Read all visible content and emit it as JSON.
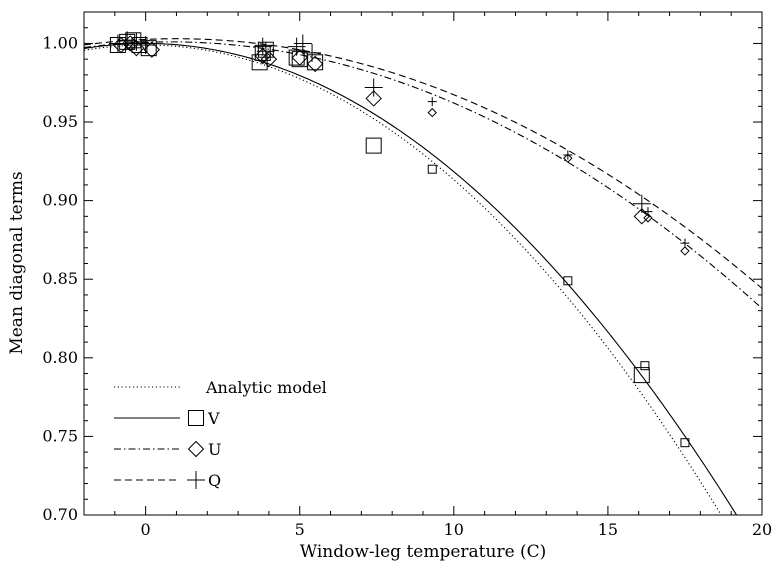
{
  "chart_data": {
    "type": "scatter",
    "title": "",
    "xlabel": "Window-leg temperature (C)",
    "ylabel": "Mean diagonal terms",
    "xlim": [
      -2,
      20
    ],
    "ylim": [
      0.7,
      1.02
    ],
    "x_ticks": [
      0,
      5,
      10,
      15,
      20
    ],
    "x_tick_labels": [
      "0",
      "5",
      "10",
      "15",
      "20"
    ],
    "y_ticks": [
      0.7,
      0.75,
      0.8,
      0.85,
      0.9,
      0.95,
      1.0
    ],
    "y_tick_labels": [
      "0.70",
      "0.75",
      "0.80",
      "0.85",
      "0.90",
      "0.95",
      "1.00"
    ],
    "grid": false,
    "legend": {
      "placement": "bottom-left",
      "entries": [
        {
          "label": "Analytic model",
          "line": "dotted",
          "marker": "none"
        },
        {
          "label": "V",
          "line": "solid",
          "marker": "square"
        },
        {
          "label": "U",
          "line": "dashdot",
          "marker": "diamond"
        },
        {
          "label": "Q",
          "line": "dashed",
          "marker": "plus"
        }
      ]
    },
    "curves": [
      {
        "legend_label": "Analytic model",
        "style": "dotted",
        "model": "quadratic",
        "x0": 0.0,
        "y0": 0.999,
        "k": 0.000857
      },
      {
        "legend_label": "V",
        "style": "solid",
        "model": "quadratic",
        "x0": 0.0,
        "y0": 1.0,
        "k": 0.000816
      },
      {
        "legend_label": "U",
        "style": "dashdot",
        "model": "quadratic",
        "x0": 0.8,
        "y0": 1.001,
        "k": 0.00046
      },
      {
        "legend_label": "Q",
        "style": "dashed",
        "model": "quadratic",
        "x0": 1.0,
        "y0": 1.003,
        "k": 0.00044
      }
    ],
    "series": [
      {
        "legend_label": "V",
        "marker": "square",
        "points": [
          {
            "x": -0.9,
            "y": 0.999,
            "s": "large"
          },
          {
            "x": -0.6,
            "y": 1.001,
            "s": "large"
          },
          {
            "x": -0.4,
            "y": 1.002,
            "s": "large"
          },
          {
            "x": -0.2,
            "y": 0.999,
            "s": "large"
          },
          {
            "x": 0.1,
            "y": 0.997,
            "s": "large"
          },
          {
            "x": 3.7,
            "y": 0.988,
            "s": "large"
          },
          {
            "x": 3.8,
            "y": 0.994,
            "s": "large"
          },
          {
            "x": 3.9,
            "y": 0.996,
            "s": "large"
          },
          {
            "x": 4.9,
            "y": 0.991,
            "s": "large"
          },
          {
            "x": 5.0,
            "y": 0.99,
            "s": "large"
          },
          {
            "x": 5.5,
            "y": 0.988,
            "s": "large"
          },
          {
            "x": 7.4,
            "y": 0.935,
            "s": "large"
          },
          {
            "x": 9.3,
            "y": 0.92,
            "s": "small"
          },
          {
            "x": 13.7,
            "y": 0.849,
            "s": "small"
          },
          {
            "x": 16.2,
            "y": 0.795,
            "s": "small"
          },
          {
            "x": 16.1,
            "y": 0.789,
            "s": "large"
          },
          {
            "x": 17.5,
            "y": 0.746,
            "s": "small"
          }
        ]
      },
      {
        "legend_label": "U",
        "marker": "diamond",
        "points": [
          {
            "x": -0.8,
            "y": 0.999,
            "s": "large"
          },
          {
            "x": -0.5,
            "y": 1.0,
            "s": "large"
          },
          {
            "x": -0.3,
            "y": 0.997,
            "s": "large"
          },
          {
            "x": 0.2,
            "y": 0.996,
            "s": "large"
          },
          {
            "x": 3.8,
            "y": 0.992,
            "s": "large"
          },
          {
            "x": 4.0,
            "y": 0.99,
            "s": "large"
          },
          {
            "x": 5.0,
            "y": 0.991,
            "s": "large"
          },
          {
            "x": 5.5,
            "y": 0.987,
            "s": "large"
          },
          {
            "x": 7.4,
            "y": 0.965,
            "s": "large"
          },
          {
            "x": 9.3,
            "y": 0.956,
            "s": "small"
          },
          {
            "x": 13.7,
            "y": 0.927,
            "s": "small"
          },
          {
            "x": 16.1,
            "y": 0.89,
            "s": "large"
          },
          {
            "x": 16.3,
            "y": 0.889,
            "s": "small"
          },
          {
            "x": 17.5,
            "y": 0.868,
            "s": "small"
          }
        ]
      },
      {
        "legend_label": "Q",
        "marker": "plus",
        "points": [
          {
            "x": -0.9,
            "y": 1.0,
            "s": "large"
          },
          {
            "x": -0.6,
            "y": 1.002,
            "s": "large"
          },
          {
            "x": -0.3,
            "y": 1.001,
            "s": "large"
          },
          {
            "x": 0.0,
            "y": 0.999,
            "s": "large"
          },
          {
            "x": 3.8,
            "y": 0.998,
            "s": "large"
          },
          {
            "x": 3.9,
            "y": 0.995,
            "s": "large"
          },
          {
            "x": 4.9,
            "y": 0.998,
            "s": "large"
          },
          {
            "x": 5.1,
            "y": 1.0,
            "s": "large"
          },
          {
            "x": 5.4,
            "y": 0.994,
            "s": "large"
          },
          {
            "x": 7.4,
            "y": 0.972,
            "s": "large"
          },
          {
            "x": 9.3,
            "y": 0.963,
            "s": "small"
          },
          {
            "x": 13.7,
            "y": 0.929,
            "s": "small"
          },
          {
            "x": 16.1,
            "y": 0.898,
            "s": "large"
          },
          {
            "x": 16.3,
            "y": 0.893,
            "s": "small"
          },
          {
            "x": 17.5,
            "y": 0.873,
            "s": "small"
          }
        ]
      }
    ]
  }
}
